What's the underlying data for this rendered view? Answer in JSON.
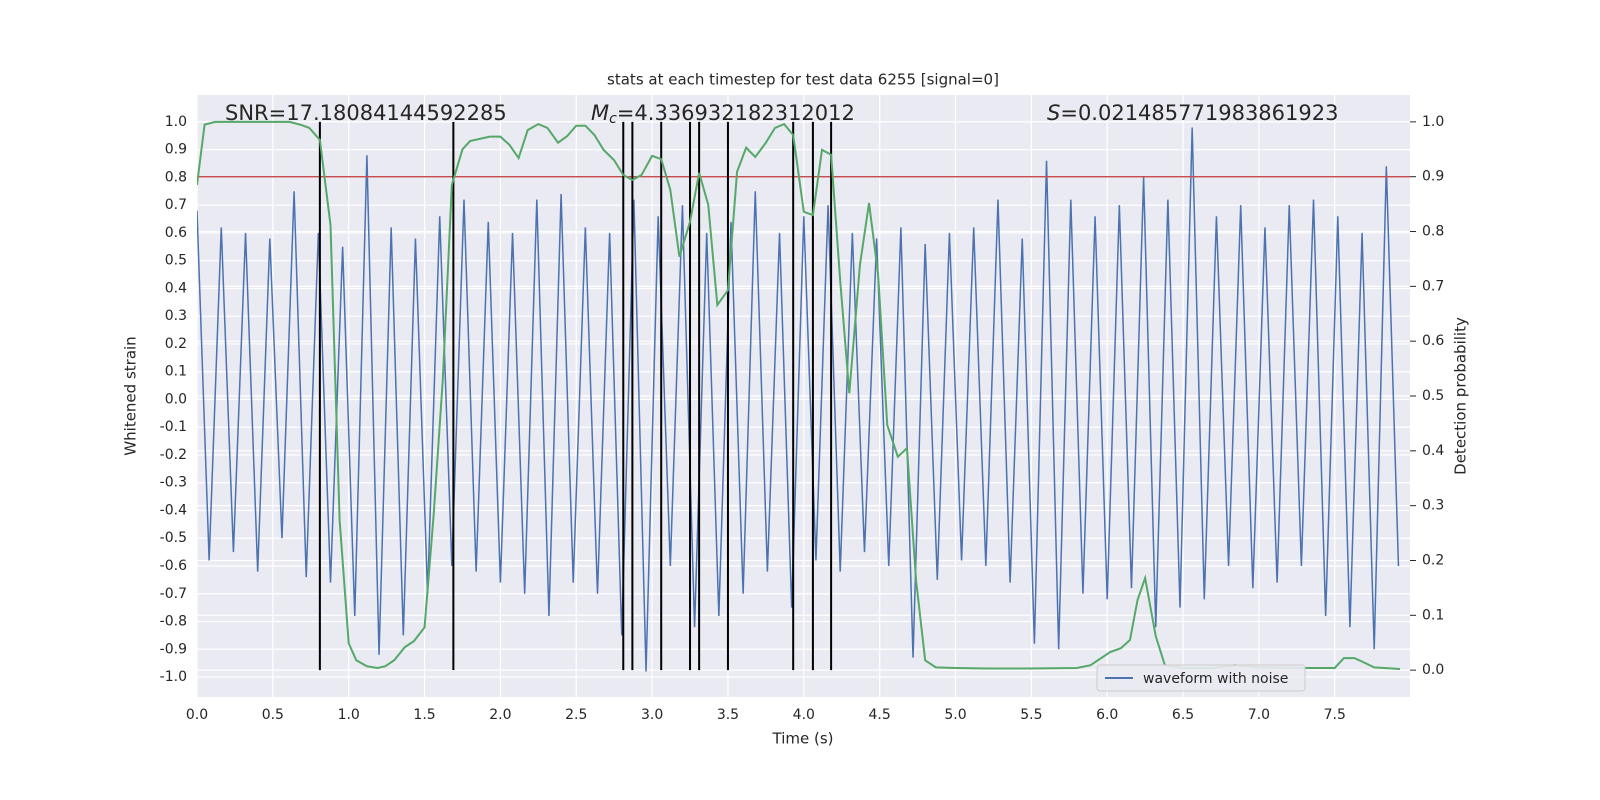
{
  "chart_data": {
    "type": "line",
    "title": "stats at each timestep for test data 6255 [signal=0]",
    "xlabel": "Time (s)",
    "ylabel": "Whitened strain",
    "y2label": "Detection probability",
    "annotations": [
      {
        "text": "SNR=17.18084144592285"
      },
      {
        "symbol": "M",
        "subscript": "c",
        "text": "=4.336932182312012"
      },
      {
        "symbol": "S",
        "text": "=0.021485771983861923"
      }
    ],
    "xlim": [
      0,
      7.996
    ],
    "ylim": [
      -1.072,
      1.097
    ],
    "y2lim": [
      -0.049,
      1.049
    ],
    "xticks": [
      {
        "value": 0,
        "label": "0.0"
      },
      0.5,
      {
        "value": 1,
        "label": "1.0"
      },
      1.5,
      {
        "value": 2,
        "label": "2.0"
      },
      2.5,
      {
        "value": 3,
        "label": "3.0"
      },
      3.5,
      {
        "value": 4,
        "label": "4.0"
      },
      4.5,
      {
        "value": 5,
        "label": "5.0"
      },
      5.5,
      {
        "value": 6,
        "label": "6.0"
      },
      6.5,
      {
        "value": 7,
        "label": "7.0"
      },
      7.5
    ],
    "yticks": [
      {
        "value": -1,
        "label": "-1.0"
      },
      -0.9,
      -0.8,
      -0.7,
      -0.6,
      -0.5,
      -0.4,
      -0.3,
      -0.2,
      -0.1,
      {
        "value": 0,
        "label": "0.0"
      },
      0.1,
      0.2,
      0.3,
      0.4,
      0.5,
      0.6,
      0.7,
      0.8,
      0.9,
      {
        "value": 1,
        "label": "1.0"
      }
    ],
    "y2ticks": [
      {
        "value": 0,
        "label": "0.0"
      },
      0.1,
      0.2,
      0.3,
      0.4,
      0.5,
      0.6,
      0.7,
      0.8,
      0.9,
      {
        "value": 1,
        "label": "1.0"
      }
    ],
    "grid": true,
    "legend_loc": "lower right",
    "series": [
      {
        "name": "waveform with noise",
        "color": "#4c72b0",
        "x": [
          0,
          0.08,
          0.16,
          0.24,
          0.32,
          0.4,
          0.48,
          0.56,
          0.64,
          0.72,
          0.8,
          0.88,
          0.96,
          1.04,
          1.12,
          1.2,
          1.28,
          1.36,
          1.44,
          1.52,
          1.6,
          1.68,
          1.76,
          1.84,
          1.92,
          2,
          2.08,
          2.16,
          2.24,
          2.32,
          2.4,
          2.48,
          2.56,
          2.64,
          2.72,
          2.8,
          2.88,
          2.96,
          3.04,
          3.12,
          3.2,
          3.28,
          3.36,
          3.44,
          3.52,
          3.6,
          3.68,
          3.76,
          3.84,
          3.92,
          4,
          4.08,
          4.16,
          4.24,
          4.32,
          4.4,
          4.48,
          4.56,
          4.64,
          4.72,
          4.8,
          4.88,
          4.96,
          5.04,
          5.12,
          5.2,
          5.28,
          5.36,
          5.44,
          5.52,
          5.6,
          5.68,
          5.76,
          5.84,
          5.92,
          6,
          6.08,
          6.16,
          6.24,
          6.32,
          6.4,
          6.48,
          6.56,
          6.64,
          6.72,
          6.8,
          6.88,
          6.96,
          7.04,
          7.12,
          7.2,
          7.28,
          7.36,
          7.44,
          7.52,
          7.6,
          7.68,
          7.76,
          7.84,
          7.92
        ],
        "values": [
          0.68,
          -0.58,
          0.62,
          -0.55,
          0.6,
          -0.62,
          0.58,
          -0.5,
          0.75,
          -0.64,
          0.6,
          -0.66,
          0.55,
          -0.78,
          0.88,
          -0.92,
          0.62,
          -0.85,
          0.58,
          -0.7,
          0.66,
          -0.6,
          0.72,
          -0.62,
          0.64,
          -0.66,
          0.6,
          -0.7,
          0.72,
          -0.78,
          0.74,
          -0.66,
          0.62,
          -0.7,
          0.6,
          -0.85,
          0.72,
          -0.98,
          0.66,
          -0.6,
          0.7,
          -0.82,
          0.6,
          -0.78,
          0.64,
          -0.7,
          0.75,
          -0.62,
          0.6,
          -0.75,
          0.66,
          -0.58,
          0.7,
          -0.62,
          0.6,
          -0.55,
          0.58,
          -0.6,
          0.62,
          -0.93,
          0.56,
          -0.65,
          0.6,
          -0.58,
          0.62,
          -0.6,
          0.72,
          -0.66,
          0.58,
          -0.88,
          0.86,
          -0.9,
          0.72,
          -0.7,
          0.66,
          -0.72,
          0.7,
          -0.68,
          0.8,
          -0.82,
          0.72,
          -0.75,
          0.98,
          -0.72,
          0.66,
          -0.6,
          0.7,
          -0.68,
          0.62,
          -0.66,
          0.7,
          -0.6,
          0.72,
          -0.78,
          0.66,
          -0.82,
          0.6,
          -0.9,
          0.84,
          -0.6
        ]
      }
    ],
    "probability_series": {
      "color": "#55a868",
      "axis": "y2",
      "x": [
        0,
        0.05,
        0.12,
        0.61,
        0.68,
        0.74,
        0.81,
        0.88,
        0.94,
        1.0,
        1.05,
        1.12,
        1.19,
        1.24,
        1.3,
        1.37,
        1.43,
        1.5,
        1.56,
        1.62,
        1.68,
        1.75,
        1.8,
        1.93,
        2.0,
        2.06,
        2.12,
        2.18,
        2.25,
        2.31,
        2.38,
        2.44,
        2.5,
        2.56,
        2.62,
        2.68,
        2.75,
        2.81,
        2.87,
        2.93,
        3.0,
        3.06,
        3.12,
        3.18,
        3.25,
        3.31,
        3.37,
        3.43,
        3.5,
        3.56,
        3.62,
        3.68,
        3.75,
        3.81,
        3.87,
        3.93,
        4.0,
        4.06,
        4.12,
        4.18,
        4.24,
        4.3,
        4.37,
        4.43,
        4.49,
        4.55,
        4.62,
        4.68,
        4.74,
        4.8,
        4.87,
        5.0,
        5.2,
        5.5,
        5.8,
        5.89,
        6.02,
        6.09,
        6.15,
        6.2,
        6.25,
        6.32,
        6.38,
        6.5,
        6.7,
        6.84,
        7.0,
        7.3,
        7.5,
        7.56,
        7.63,
        7.7,
        7.76,
        7.93
      ],
      "values": [
        0.885,
        0.995,
        1.0,
        1.0,
        0.995,
        0.989,
        0.967,
        0.812,
        0.274,
        0.049,
        0.018,
        0.007,
        0.004,
        0.007,
        0.018,
        0.042,
        0.053,
        0.078,
        0.283,
        0.529,
        0.885,
        0.95,
        0.965,
        0.973,
        0.973,
        0.958,
        0.934,
        0.985,
        0.996,
        0.989,
        0.962,
        0.974,
        0.993,
        0.993,
        0.976,
        0.949,
        0.93,
        0.903,
        0.894,
        0.903,
        0.938,
        0.932,
        0.876,
        0.754,
        0.818,
        0.907,
        0.849,
        0.666,
        0.693,
        0.909,
        0.953,
        0.936,
        0.962,
        0.989,
        0.996,
        0.976,
        0.836,
        0.83,
        0.949,
        0.94,
        0.71,
        0.505,
        0.739,
        0.852,
        0.721,
        0.447,
        0.389,
        0.405,
        0.164,
        0.018,
        0.005,
        0.004,
        0.003,
        0.003,
        0.004,
        0.009,
        0.033,
        0.04,
        0.055,
        0.128,
        0.168,
        0.062,
        0.009,
        0.004,
        0.004,
        0.009,
        0.005,
        0.004,
        0.004,
        0.022,
        0.022,
        0.013,
        0.005,
        0.002
      ]
    },
    "threshold": {
      "value": 0.9,
      "axis": "y2",
      "color": "#c44e52"
    },
    "events": {
      "color": "#000000",
      "axis": "y2",
      "x": [
        0.81,
        1.69,
        2.81,
        2.87,
        3.06,
        3.25,
        3.31,
        3.5,
        3.93,
        4.06,
        4.18
      ]
    }
  }
}
